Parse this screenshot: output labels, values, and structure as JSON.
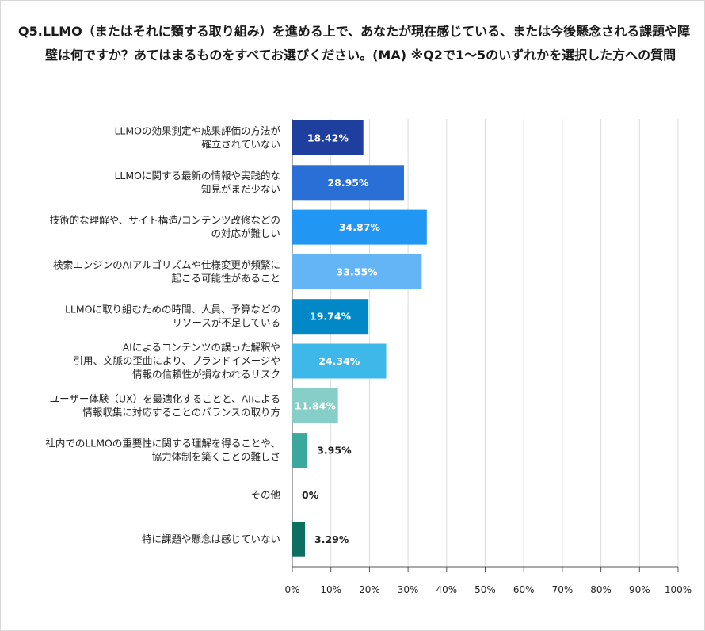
{
  "chart_data": {
    "type": "bar",
    "orientation": "horizontal",
    "title": "Q5.LLMO（またはそれに類する取り組み）を進める上で、あなたが現在感じている、または今後懸念される課題や障壁は何ですか？あてはまるものをすべてお選びください。(MA) ※Q2で1〜5のいずれかを選択した方への質問",
    "categories": [
      [
        "LLMOの効果測定や成果評価の方法が",
        "確立されていない"
      ],
      [
        "LLMOに関する最新の情報や実践的な",
        "知見がまだ少ない"
      ],
      [
        "技術的な理解や、サイト構造/コンテンツ改修などの",
        "の対応が難しい"
      ],
      [
        "検索エンジンのAIアルゴリズムや仕様変更が頻繁に",
        "起こる可能性があること"
      ],
      [
        "LLMOに取り組むための時間、人員、予算などの",
        "リソースが不足している"
      ],
      [
        "AIによるコンテンツの誤った解釈や",
        "引用、文脈の歪曲により、ブランドイメージや",
        "情報の信頼性が損なわれるリスク"
      ],
      [
        "ユーザー体験（UX）を最適化することと、AIによる",
        "情報収集に対応することのバランスの取り方"
      ],
      [
        "社内でのLLMOの重要性に関する理解を得ることや、",
        "協力体制を築くことの難しさ"
      ],
      [
        "その他"
      ],
      [
        "特に課題や懸念は感じていない"
      ]
    ],
    "values": [
      18.42,
      28.95,
      34.87,
      33.55,
      19.74,
      24.34,
      11.84,
      3.95,
      0,
      3.29
    ],
    "value_labels": [
      "18.42%",
      "28.95%",
      "34.87%",
      "33.55%",
      "19.74%",
      "24.34%",
      "11.84%",
      "3.95%",
      "0%",
      "3.29%"
    ],
    "colors": [
      "#1f3f9e",
      "#2a6fd6",
      "#2196f3",
      "#64b5f6",
      "#0288c7",
      "#3db8e8",
      "#86cec8",
      "#3aa89c",
      "#2f9687",
      "#0d6e62"
    ],
    "label_inside": [
      true,
      true,
      true,
      true,
      true,
      true,
      true,
      false,
      false,
      false
    ],
    "x_ticks": [
      "0%",
      "10%",
      "20%",
      "30%",
      "40%",
      "50%",
      "60%",
      "70%",
      "80%",
      "90%",
      "100%"
    ],
    "xlim": [
      0,
      100
    ],
    "grid": true,
    "legend": "none"
  }
}
